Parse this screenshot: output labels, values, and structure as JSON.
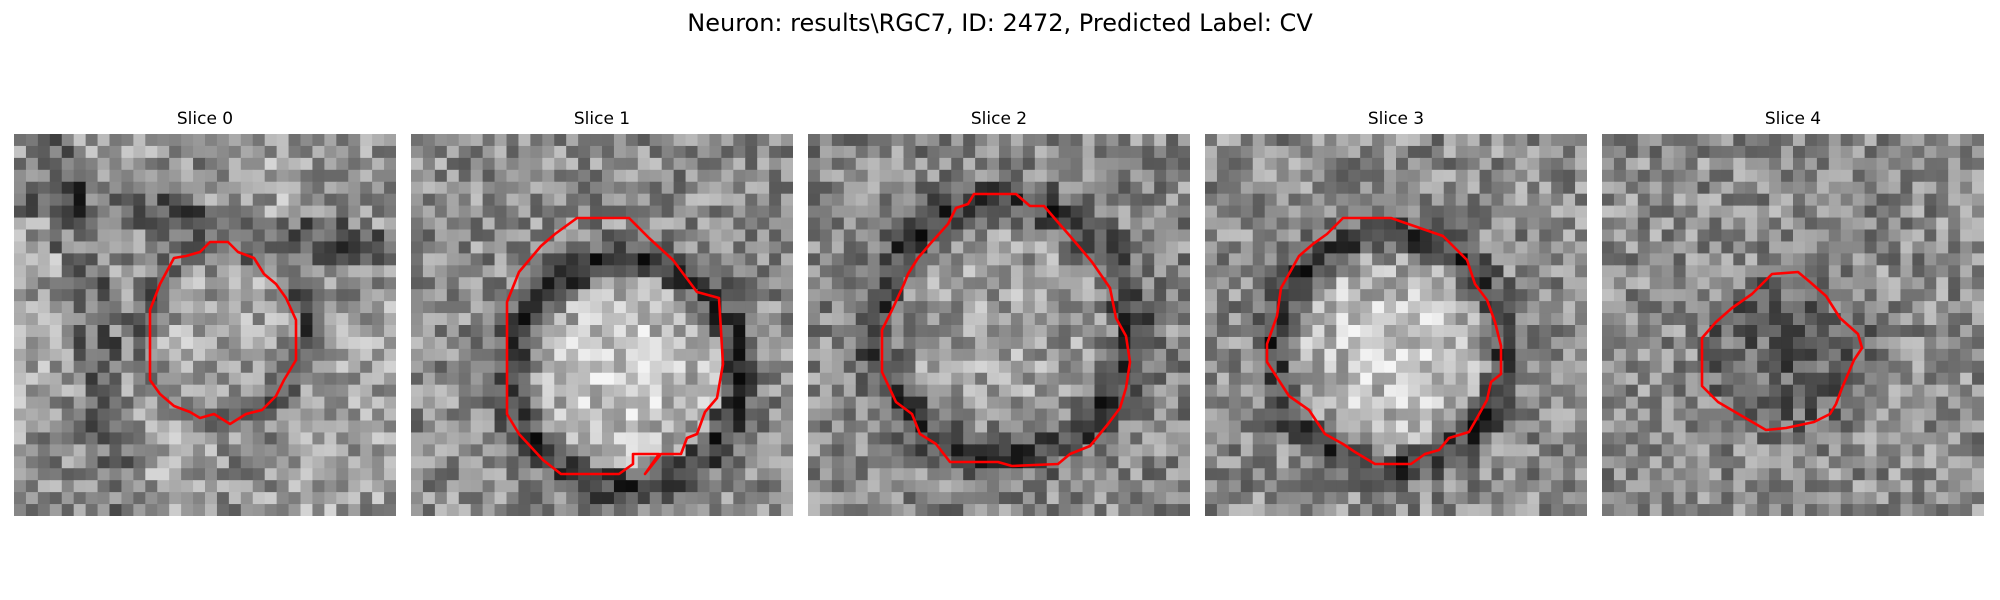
{
  "figure": {
    "title": "Neuron: results\\RGC7, ID: 2472, Predicted Label: CV",
    "outline_color": "#ff0000",
    "image_colormap": "gray",
    "panels": [
      {
        "label": "Slice 0",
        "seed": 11,
        "base": 150,
        "ring_darkness": 55,
        "inner_brightness": 5,
        "bg_structure": "vessels"
      },
      {
        "label": "Slice 1",
        "seed": 23,
        "base": 140,
        "ring_darkness": 85,
        "inner_brightness": 70,
        "bg_structure": "noise"
      },
      {
        "label": "Slice 2",
        "seed": 37,
        "base": 135,
        "ring_darkness": 75,
        "inner_brightness": 30,
        "bg_structure": "noise"
      },
      {
        "label": "Slice 3",
        "seed": 41,
        "base": 140,
        "ring_darkness": 80,
        "inner_brightness": 65,
        "bg_structure": "noise"
      },
      {
        "label": "Slice 4",
        "seed": 53,
        "base": 140,
        "ring_darkness": 40,
        "inner_brightness": -55,
        "bg_structure": "noise"
      }
    ]
  }
}
